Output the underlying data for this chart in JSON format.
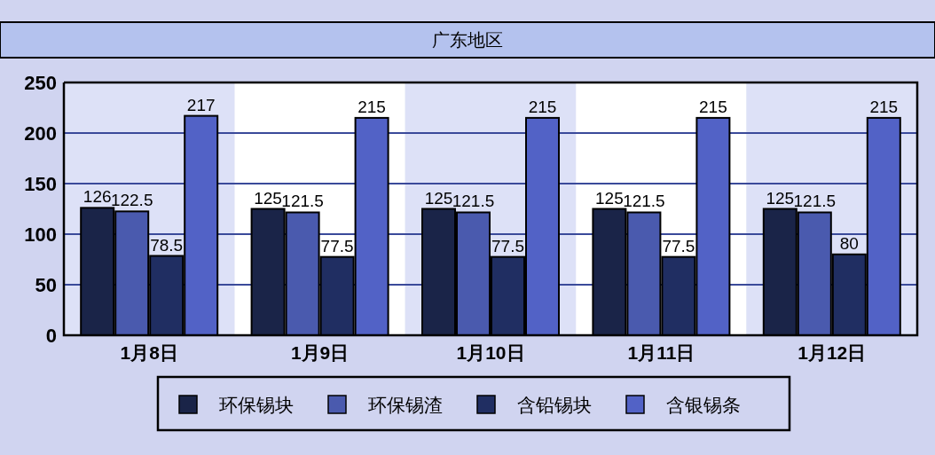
{
  "chart_data": {
    "type": "bar",
    "title": "广东地区",
    "categories": [
      "1月8日",
      "1月9日",
      "1月10日",
      "1月11日",
      "1月12日"
    ],
    "series": [
      {
        "name": "环保锡块",
        "color": "#1a2448",
        "values": [
          126,
          125,
          125,
          125,
          125
        ]
      },
      {
        "name": "环保锡渣",
        "color": "#4a5aae",
        "values": [
          122.5,
          121.5,
          121.5,
          121.5,
          121.5
        ]
      },
      {
        "name": "含铅锡块",
        "color": "#202e62",
        "values": [
          78.5,
          77.5,
          77.5,
          77.5,
          80
        ]
      },
      {
        "name": "含银锡条",
        "color": "#5262c6",
        "values": [
          217,
          215,
          215,
          215,
          215
        ]
      }
    ],
    "ylim": [
      0,
      250
    ],
    "yticks": [
      0,
      50,
      100,
      150,
      200,
      250
    ],
    "grid": "y",
    "data_labels": true,
    "legend": "bottom"
  }
}
